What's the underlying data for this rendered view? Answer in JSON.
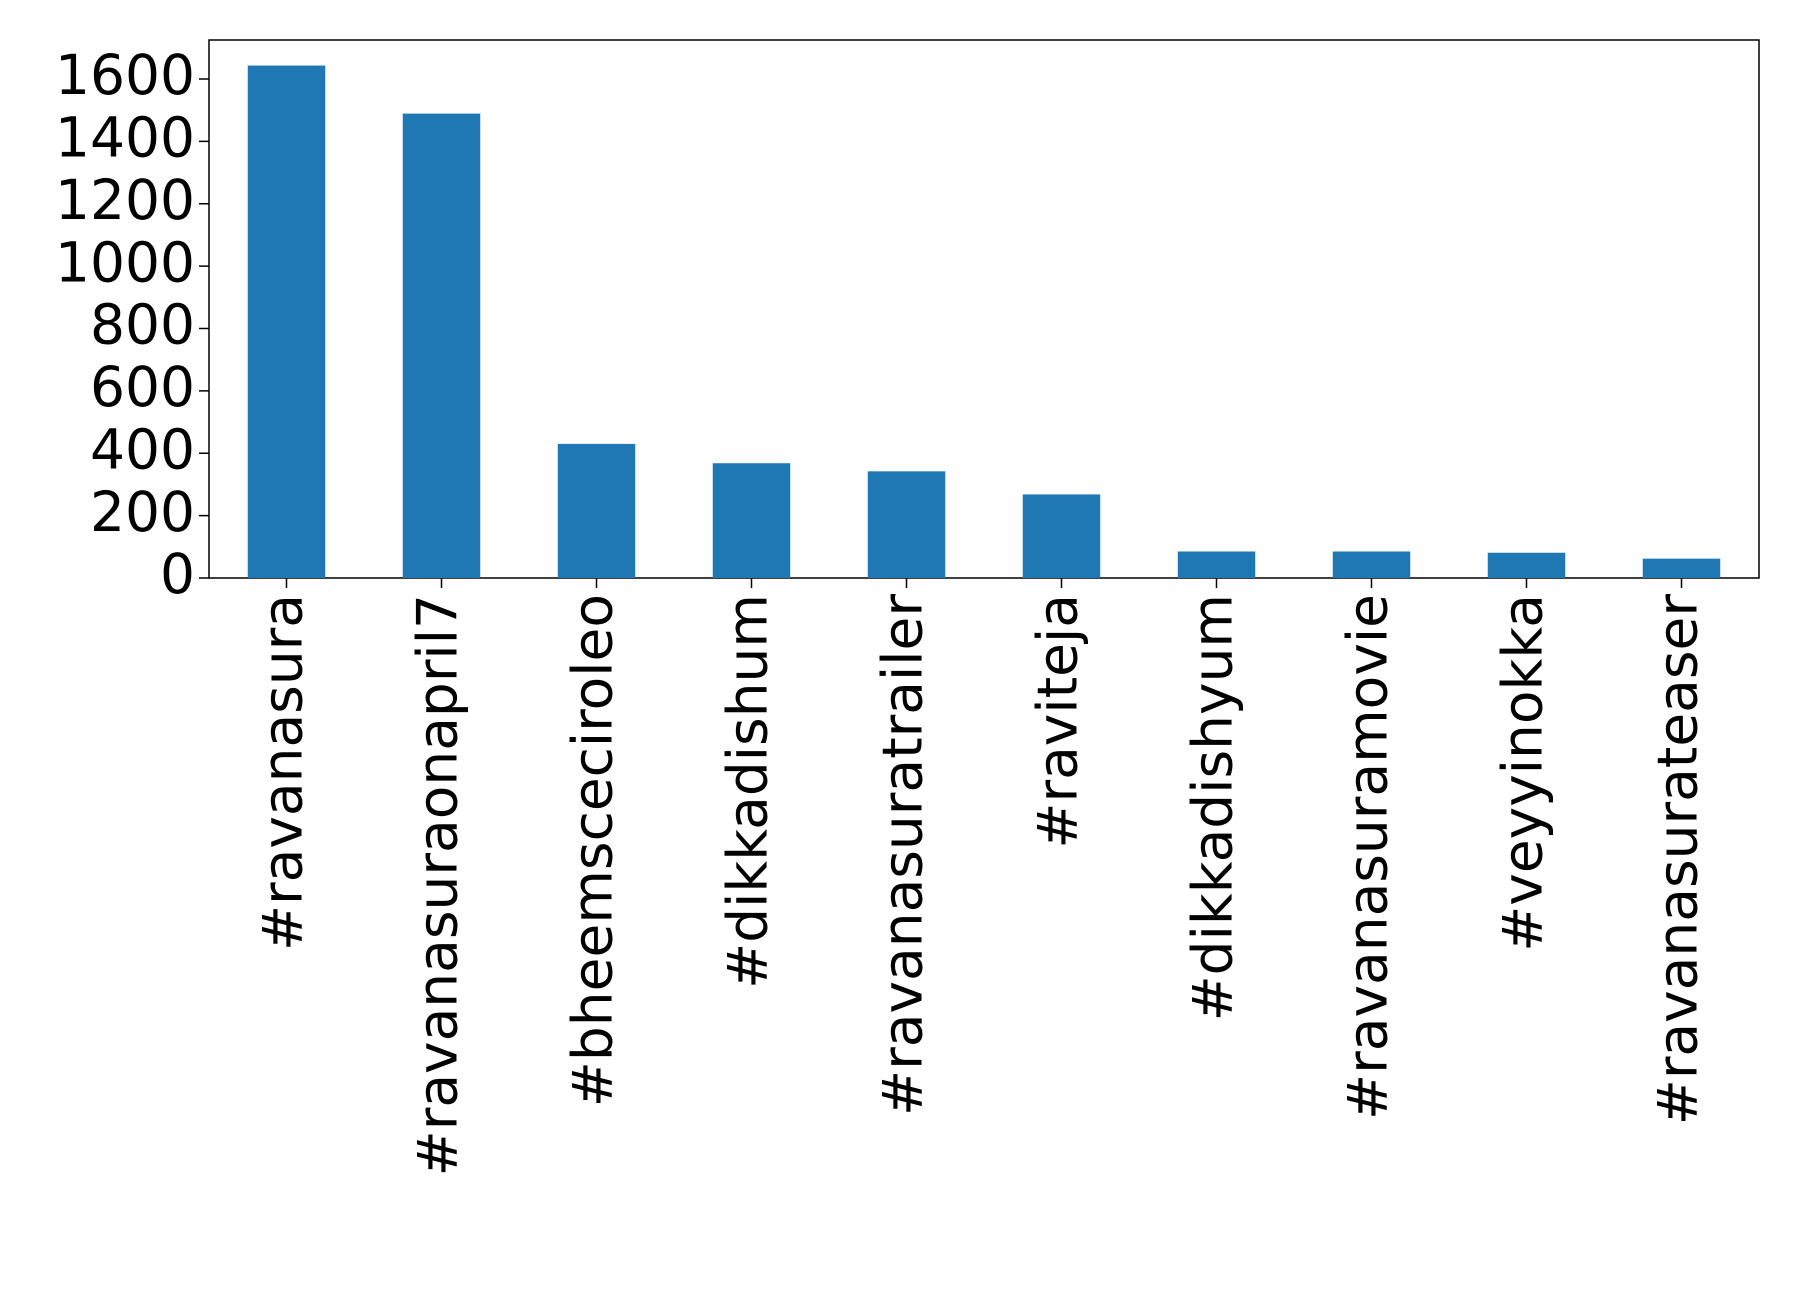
{
  "chart_data": {
    "type": "bar",
    "categories": [
      "#ravanasura",
      "#ravanasuraonapril7",
      "#bheemsceciroleo",
      "#dikkadishum",
      "#ravanasuratrailer",
      "#raviteja",
      "#dikkadishyum",
      "#ravanasuramovie",
      "#veyyinokka",
      "#ravanasurateaser"
    ],
    "values": [
      1643,
      1489,
      430,
      368,
      342,
      268,
      85,
      85,
      81,
      62
    ],
    "color": "#1f77b4",
    "ylim": [
      0,
      1725
    ],
    "yticks": [
      0,
      200,
      400,
      600,
      800,
      1000,
      1200,
      1400,
      1600
    ],
    "grid": false
  }
}
